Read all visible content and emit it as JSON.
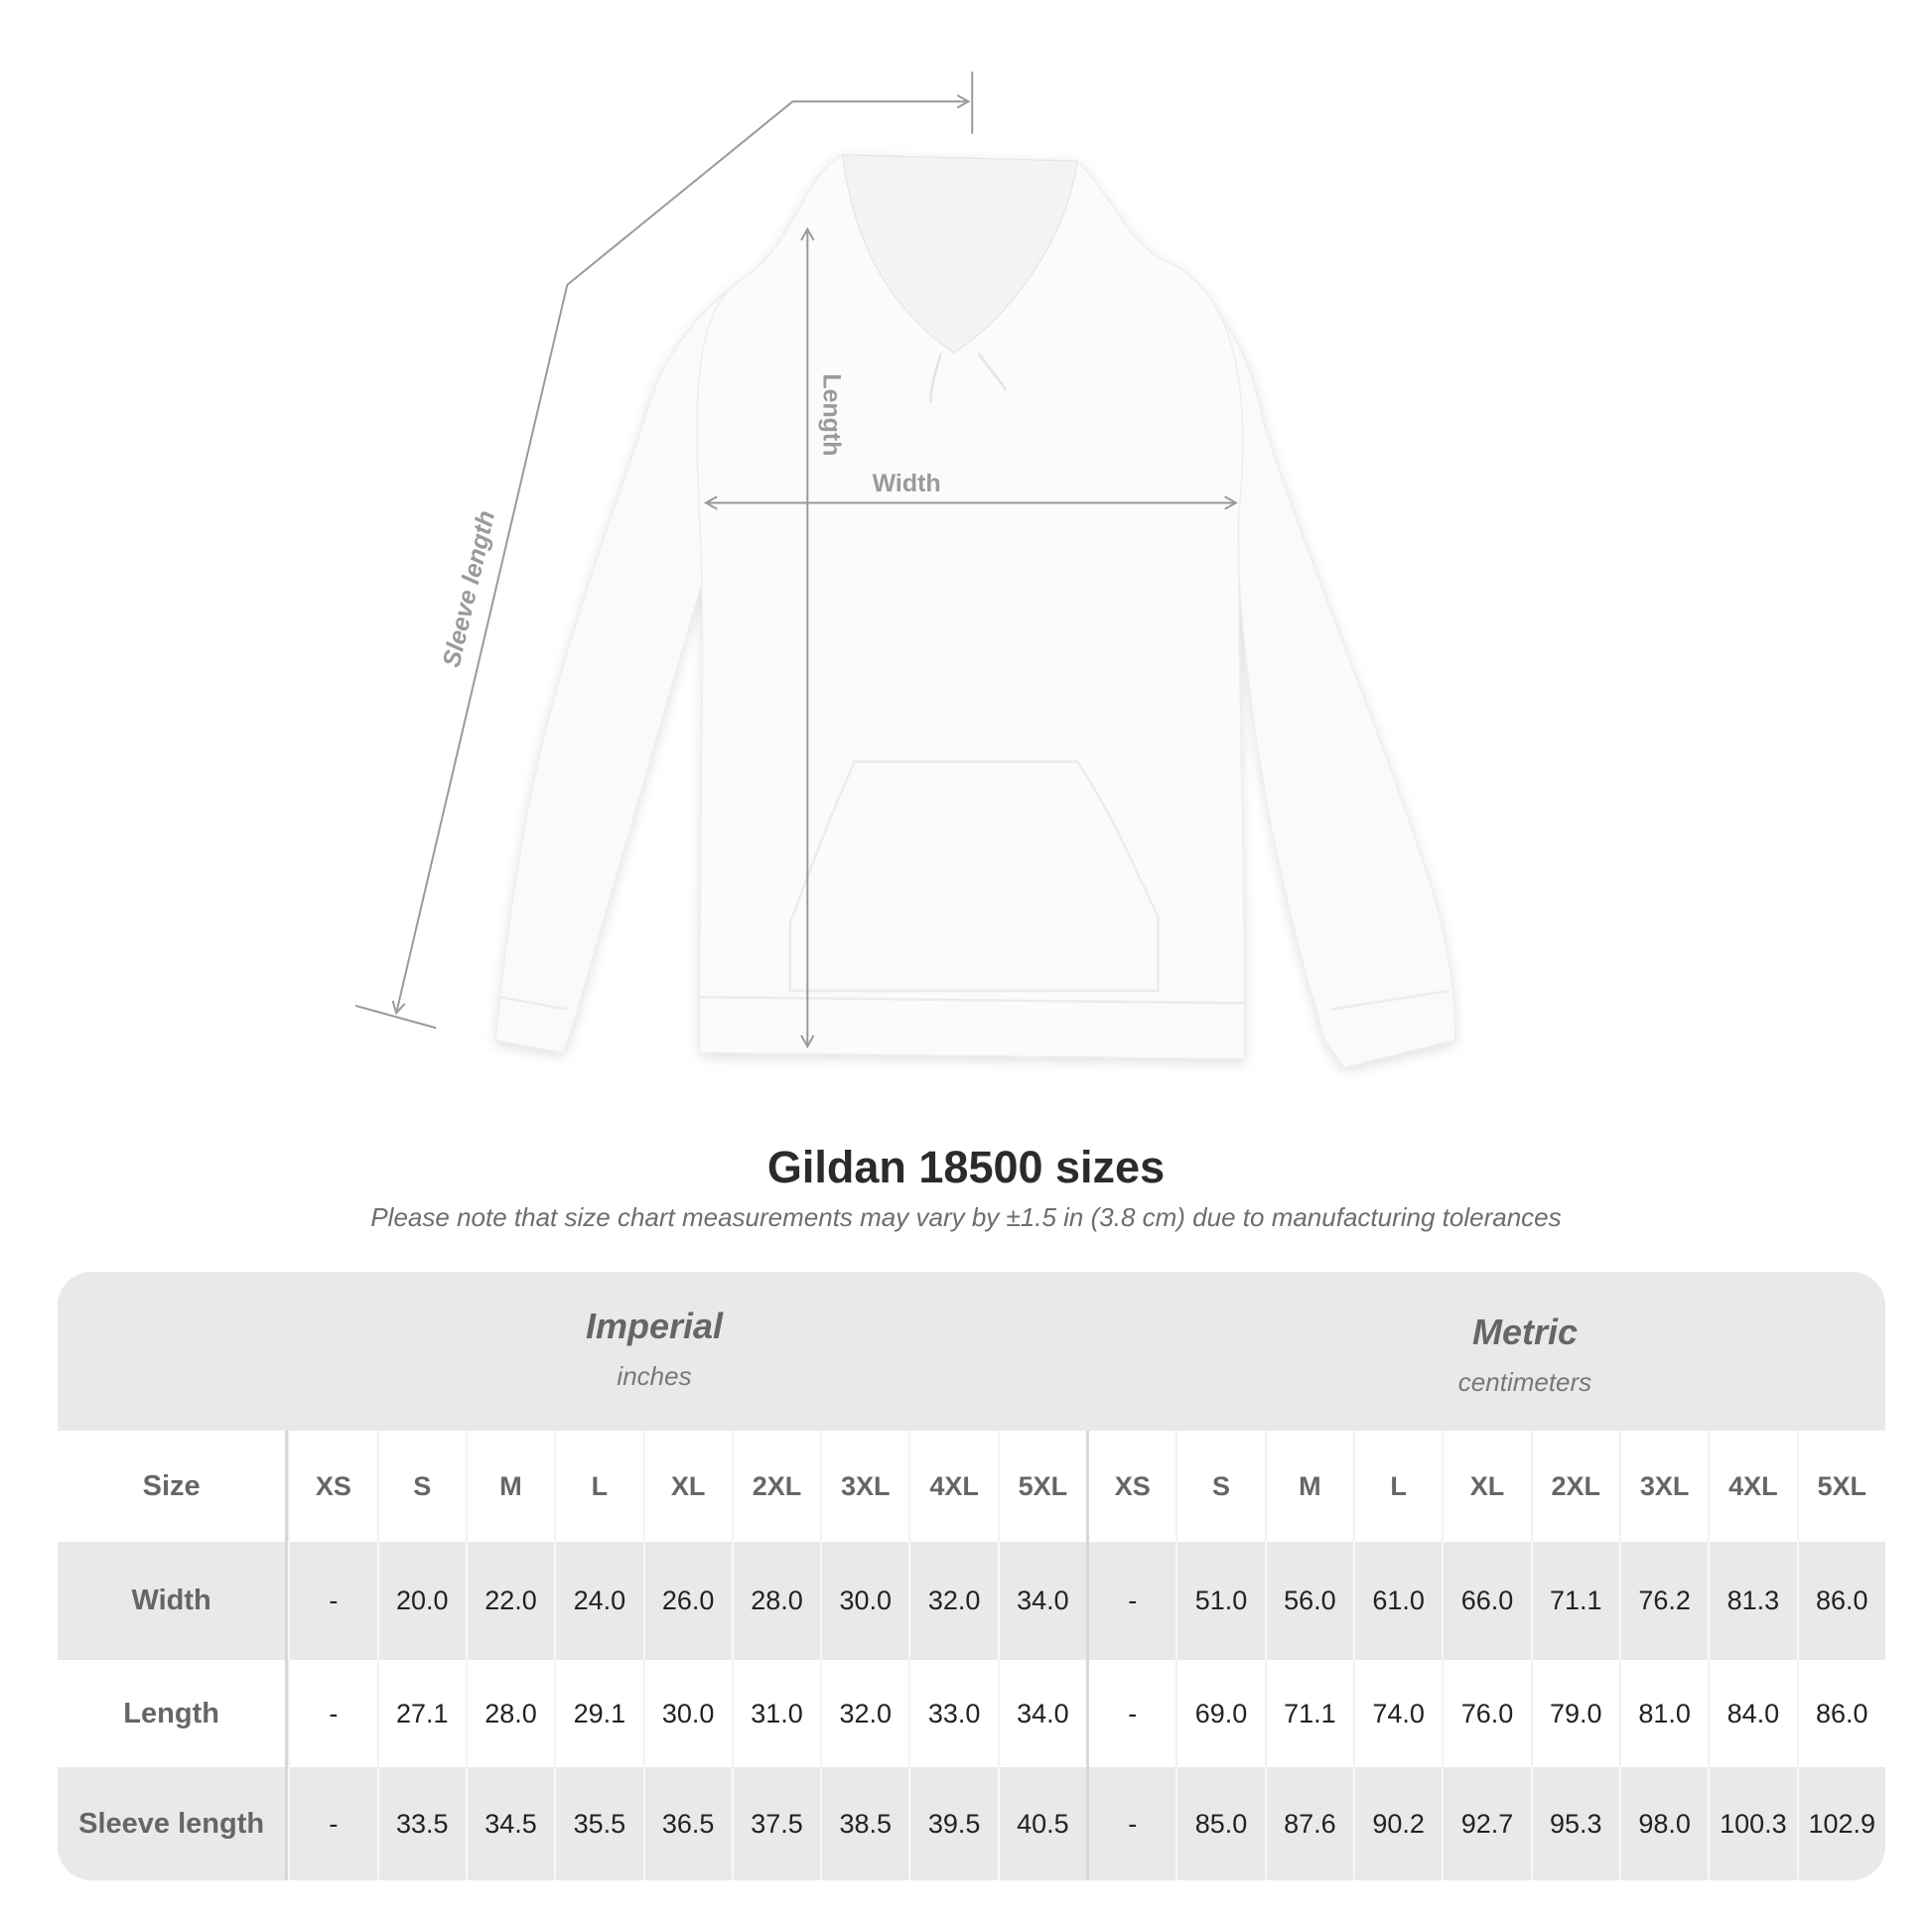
{
  "illustration": {
    "labels": {
      "sleeve": "Sleeve length",
      "length": "Length",
      "width": "Width"
    },
    "garment_color": "#fafafa",
    "line_color": "#9a9a9a"
  },
  "title": "Gildan 18500 sizes",
  "subtitle": "Please note that size chart measurements may vary by ±1.5 in (3.8 cm) due to manufacturing tolerances",
  "table": {
    "imperial": {
      "name": "Imperial",
      "unit": "inches"
    },
    "metric": {
      "name": "Metric",
      "unit": "centimeters"
    },
    "size_label": "Size",
    "sizes": [
      "XS",
      "S",
      "M",
      "L",
      "XL",
      "2XL",
      "3XL",
      "4XL",
      "5XL"
    ],
    "rows": [
      {
        "label": "Width",
        "imperial": [
          "-",
          "20.0",
          "22.0",
          "24.0",
          "26.0",
          "28.0",
          "30.0",
          "32.0",
          "34.0"
        ],
        "metric": [
          "-",
          "51.0",
          "56.0",
          "61.0",
          "66.0",
          "71.1",
          "76.2",
          "81.3",
          "86.0"
        ]
      },
      {
        "label": "Length",
        "imperial": [
          "-",
          "27.1",
          "28.0",
          "29.1",
          "30.0",
          "31.0",
          "32.0",
          "33.0",
          "34.0"
        ],
        "metric": [
          "-",
          "69.0",
          "71.1",
          "74.0",
          "76.0",
          "79.0",
          "81.0",
          "84.0",
          "86.0"
        ]
      },
      {
        "label": "Sleeve length",
        "imperial": [
          "-",
          "33.5",
          "34.5",
          "35.5",
          "36.5",
          "37.5",
          "38.5",
          "39.5",
          "40.5"
        ],
        "metric": [
          "-",
          "85.0",
          "87.6",
          "90.2",
          "92.7",
          "95.3",
          "98.0",
          "100.3",
          "102.9"
        ]
      }
    ]
  }
}
